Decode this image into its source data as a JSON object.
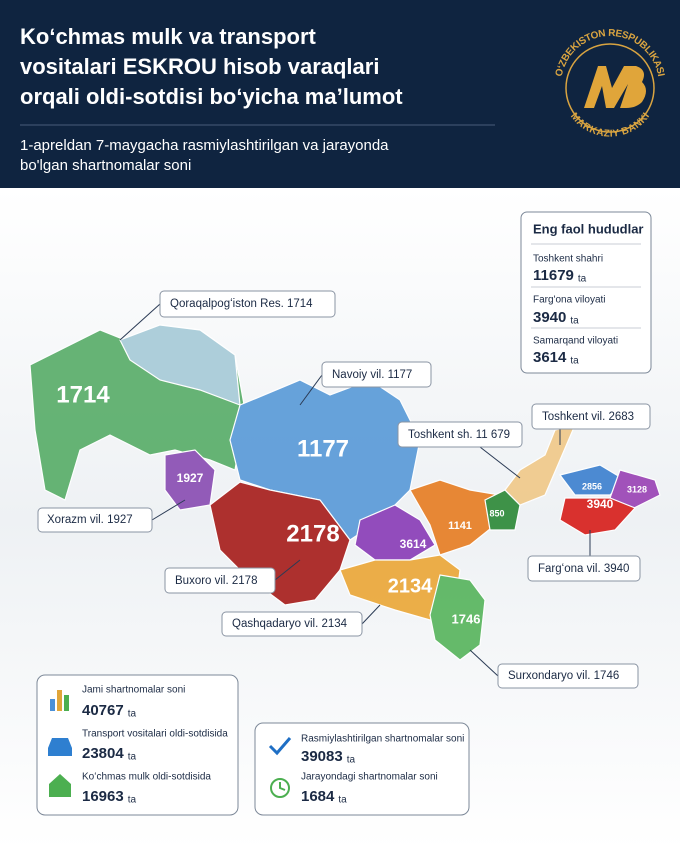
{
  "header": {
    "title_lines": [
      "Koʻchmas mulk va transport",
      "vositalari ESKROU hisob varaqlari",
      "orqali oldi-sotdisi boʻyicha maʼlumot"
    ],
    "subtitle_lines": [
      "1-apreldan 7-maygacha rasmiylashtirilgan va jarayonda",
      "bo'lgan shartnomalar soni"
    ],
    "logo_top": "OʻZBEKISTON RESPUBLIKASI",
    "logo_bottom": "MARKAZIY BANKI"
  },
  "top_regions": {
    "title": "Eng  faol hududlar",
    "items": [
      {
        "name": "Toshkent shahri",
        "value": 11679,
        "unit": "ta"
      },
      {
        "name": "Farg'ona viloyati",
        "value": 3940,
        "unit": "ta"
      },
      {
        "name": "Samarqand viloyati",
        "value": 3614,
        "unit": "ta"
      }
    ]
  },
  "map": {
    "labels": [
      1714,
      1927,
      1177,
      2178,
      3614,
      1141,
      850,
      2134,
      1746,
      2856,
      3128,
      3940
    ],
    "callouts": [
      "Qoraqalpogʻiston Res. 1714",
      "Navoiy vil. 1177",
      "Toshkent vil. 2683",
      "Toshkent sh. 11 679",
      "Xorazm vil. 1927",
      "Buxoro vil. 2178",
      "Fargʻona vil. 3940",
      "Qashqadaryo vil. 2134",
      "Surxondaryo vil. 1746"
    ]
  },
  "totals": {
    "items": [
      {
        "label": "Jami shartnomalar soni",
        "value": 40767,
        "unit": "ta"
      },
      {
        "label": "Transport vositalari oldi-sotdisida",
        "value": 23804,
        "unit": "ta"
      },
      {
        "label": "Koʻchmas mulk oldi-sotdisida",
        "value": 16963,
        "unit": "ta"
      }
    ]
  },
  "status": {
    "items": [
      {
        "label": "Rasmiylashtirilgan shartnomalar soni",
        "value": 39083,
        "unit": "ta"
      },
      {
        "label": "Jarayondagi shartnomalar soni",
        "value": 1684,
        "unit": "ta"
      }
    ]
  }
}
